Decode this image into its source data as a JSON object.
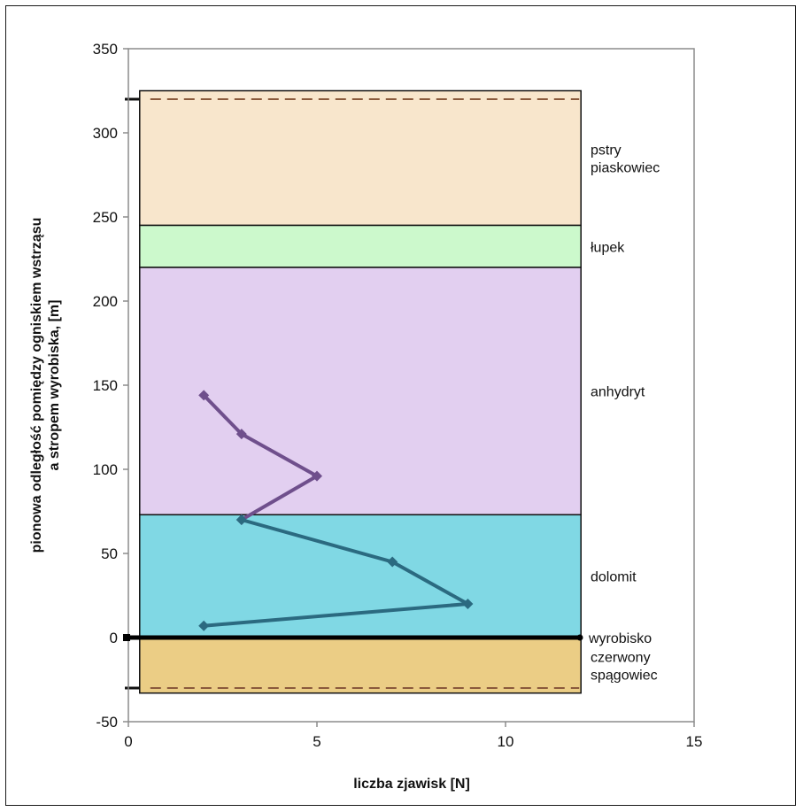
{
  "chart_data": {
    "type": "line",
    "xlabel": "liczba zjawisk [N]",
    "ylabel_lines": [
      "pionowa odległość pomiędzy ogniskiem wstrząsu",
      "a stropem wyrobiska, [m]"
    ],
    "xlim": [
      0,
      15
    ],
    "ylim": [
      -50,
      350
    ],
    "x_ticks": [
      0,
      5,
      10,
      15
    ],
    "y_ticks": [
      -50,
      0,
      50,
      100,
      150,
      200,
      250,
      300,
      350
    ],
    "grid": false,
    "layers": [
      {
        "name": "pstry piaskowiec",
        "label_lines": [
          "pstry",
          "piaskowiec"
        ],
        "y_from": 245,
        "y_to": 325,
        "color": "#f8e6cc"
      },
      {
        "name": "łupek",
        "label_lines": [
          "łupek"
        ],
        "y_from": 220,
        "y_to": 245,
        "color": "#ccf9cc"
      },
      {
        "name": "anhydryt",
        "label_lines": [
          "anhydryt"
        ],
        "y_from": 73,
        "y_to": 220,
        "color": "#e2cff0"
      },
      {
        "name": "dolomit",
        "label_lines": [
          "dolomit"
        ],
        "y_from": 0,
        "y_to": 73,
        "color": "#80d8e4"
      },
      {
        "name": "czerwony spągowiec",
        "label_lines": [
          "czerwony",
          "spągowiec"
        ],
        "y_from": -33,
        "y_to": 0,
        "color": "#ebcd85"
      }
    ],
    "layer_x_range": [
      0.3,
      12
    ],
    "dashed_levels": [
      320,
      -30
    ],
    "reference_line": {
      "label": "wyrobisko",
      "y": 0
    },
    "series": [
      {
        "color": "#6f4f8c",
        "points": [
          [
            2,
            144
          ],
          [
            3,
            121
          ],
          [
            5,
            96
          ],
          [
            3,
            70
          ]
        ]
      },
      {
        "color": "#2b6a80",
        "points": [
          [
            3,
            70
          ],
          [
            7,
            45
          ],
          [
            9,
            20
          ],
          [
            2,
            7
          ]
        ]
      }
    ]
  }
}
